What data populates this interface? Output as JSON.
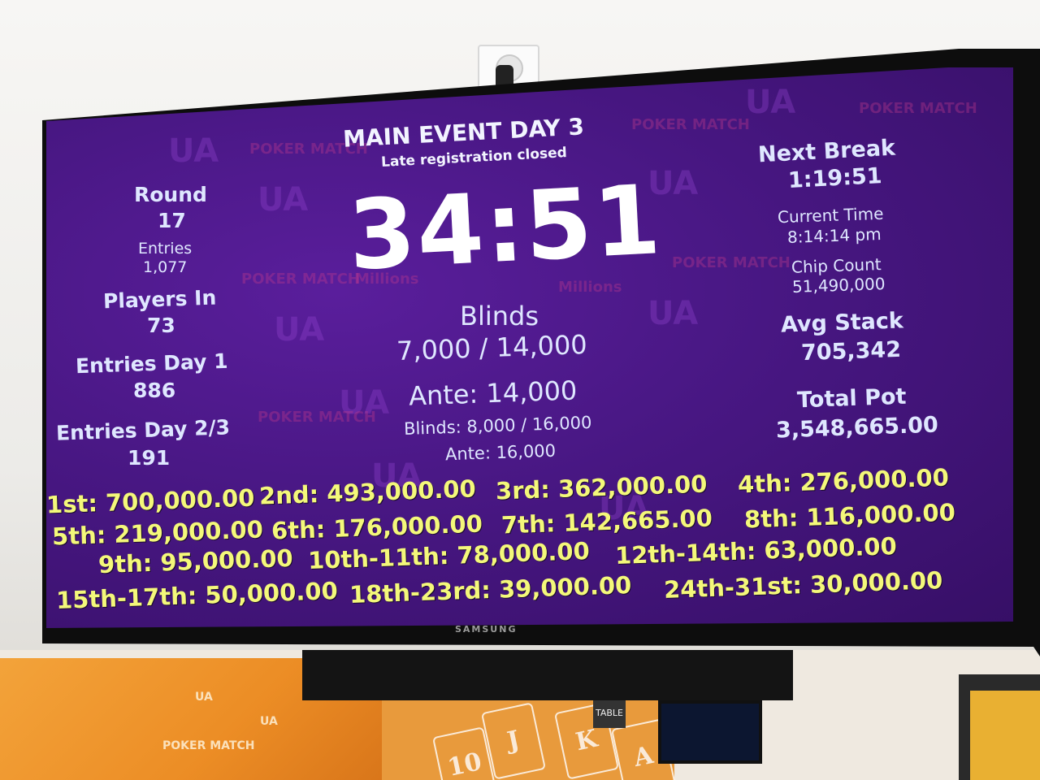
{
  "event": {
    "title": "MAIN EVENT DAY 3",
    "status": "Late registration closed",
    "clock": "34:51"
  },
  "left": {
    "round_label": "Round",
    "round_value": "17",
    "entries_label": "Entries",
    "entries_value": "1,077",
    "players_label": "Players In",
    "players_value": "73",
    "day1_label": "Entries Day 1",
    "day1_value": "886",
    "day23_label": "Entries Day 2/3",
    "day23_value": "191"
  },
  "center": {
    "blinds_label": "Blinds",
    "blinds_value": "7,000 / 14,000",
    "ante": "Ante: 14,000",
    "next_blinds": "Blinds: 8,000 / 16,000",
    "next_ante": "Ante: 16,000"
  },
  "right": {
    "next_break_label": "Next Break",
    "next_break_value": "1:19:51",
    "current_time_label": "Current Time",
    "current_time_value": "8:14:14 pm",
    "chip_count_label": "Chip Count",
    "chip_count_value": "51,490,000",
    "avg_stack_label": "Avg Stack",
    "avg_stack_value": "705,342",
    "total_pot_label": "Total Pot",
    "total_pot_value": "3,548,665.00"
  },
  "payouts": [
    "1st: 700,000.00",
    "2nd: 493,000.00",
    "3rd: 362,000.00",
    "4th: 276,000.00",
    "5th: 219,000.00",
    "6th: 176,000.00",
    "7th: 142,665.00",
    "8th: 116,000.00",
    "9th: 95,000.00",
    "10th-11th: 78,000.00",
    "12th-14th: 63,000.00",
    "15th-17th: 50,000.00",
    "18th-23rd: 39,000.00",
    "24th-31st: 30,000.00"
  ],
  "brand": {
    "tv": "SAMSUNG",
    "watermark_1": "UA",
    "watermark_2": "Millions",
    "watermark_3": "POKER MATCH"
  },
  "scene": {
    "sign": "TABLE",
    "card_1": "10",
    "card_2": "J",
    "card_3": "K",
    "card_4": "A"
  },
  "colors": {
    "screen_bg": "#481783",
    "label_text": "#dfe7ff",
    "payout_text": "#f4f87a"
  }
}
